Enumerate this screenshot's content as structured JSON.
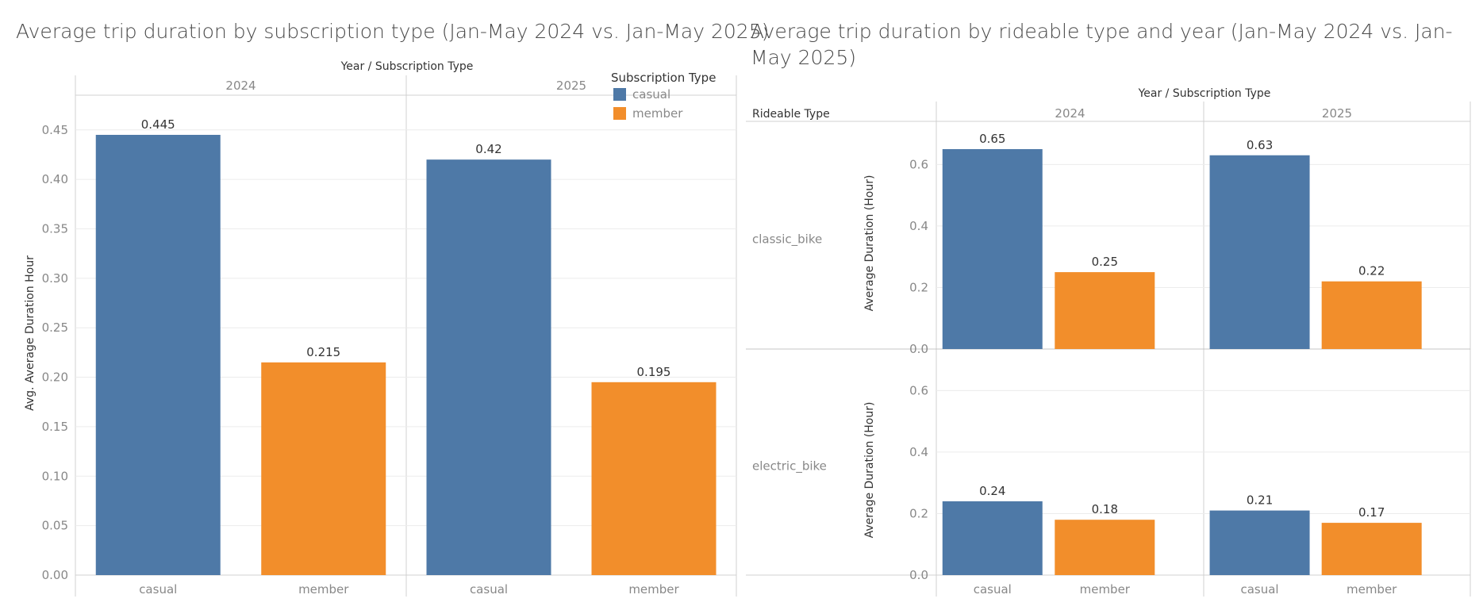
{
  "colors": {
    "casual": "#4e79a7",
    "member": "#f28e2b",
    "grid": "#ececec",
    "axis": "#d0d0d0",
    "tick": "#888888",
    "label": "#333333"
  },
  "chart_data": [
    {
      "type": "bar",
      "title": "Average trip duration by subscription type (Jan-May 2024 vs. Jan-May 2025)",
      "column_header": "Year / Subscription Type",
      "ylabel": "Avg. Average Duration Hour",
      "ylim": [
        0,
        0.45
      ],
      "yticks": [
        "0.00",
        "0.05",
        "0.10",
        "0.15",
        "0.20",
        "0.25",
        "0.30",
        "0.35",
        "0.40",
        "0.45"
      ],
      "legend": {
        "title": "Subscription Type",
        "placement": "top-right",
        "entries": [
          "casual",
          "member"
        ]
      },
      "panels": [
        {
          "year": "2024",
          "bars": [
            {
              "category": "casual",
              "value": 0.445,
              "label": "0.445"
            },
            {
              "category": "member",
              "value": 0.215,
              "label": "0.215"
            }
          ]
        },
        {
          "year": "2025",
          "bars": [
            {
              "category": "casual",
              "value": 0.42,
              "label": "0.42"
            },
            {
              "category": "member",
              "value": 0.195,
              "label": "0.195"
            }
          ]
        }
      ]
    },
    {
      "type": "bar",
      "title": "Average trip duration by rideable type and year (Jan-May 2024 vs. Jan-May 2025)",
      "column_header": "Year / Subscription Type",
      "row_header": "Rideable Type",
      "ylabel": "Average Duration (Hour)",
      "ylim": [
        0,
        0.6
      ],
      "yticks": [
        "0.0",
        "0.2",
        "0.4",
        "0.6"
      ],
      "years": [
        "2024",
        "2025"
      ],
      "rows": [
        {
          "rideable_type": "classic_bike",
          "panels": [
            {
              "year": "2024",
              "bars": [
                {
                  "category": "casual",
                  "value": 0.65,
                  "label": "0.65"
                },
                {
                  "category": "member",
                  "value": 0.25,
                  "label": "0.25"
                }
              ]
            },
            {
              "year": "2025",
              "bars": [
                {
                  "category": "casual",
                  "value": 0.63,
                  "label": "0.63"
                },
                {
                  "category": "member",
                  "value": 0.22,
                  "label": "0.22"
                }
              ]
            }
          ]
        },
        {
          "rideable_type": "electric_bike",
          "panels": [
            {
              "year": "2024",
              "bars": [
                {
                  "category": "casual",
                  "value": 0.24,
                  "label": "0.24"
                },
                {
                  "category": "member",
                  "value": 0.18,
                  "label": "0.18"
                }
              ]
            },
            {
              "year": "2025",
              "bars": [
                {
                  "category": "casual",
                  "value": 0.21,
                  "label": "0.21"
                },
                {
                  "category": "member",
                  "value": 0.17,
                  "label": "0.17"
                }
              ]
            }
          ]
        }
      ]
    }
  ]
}
